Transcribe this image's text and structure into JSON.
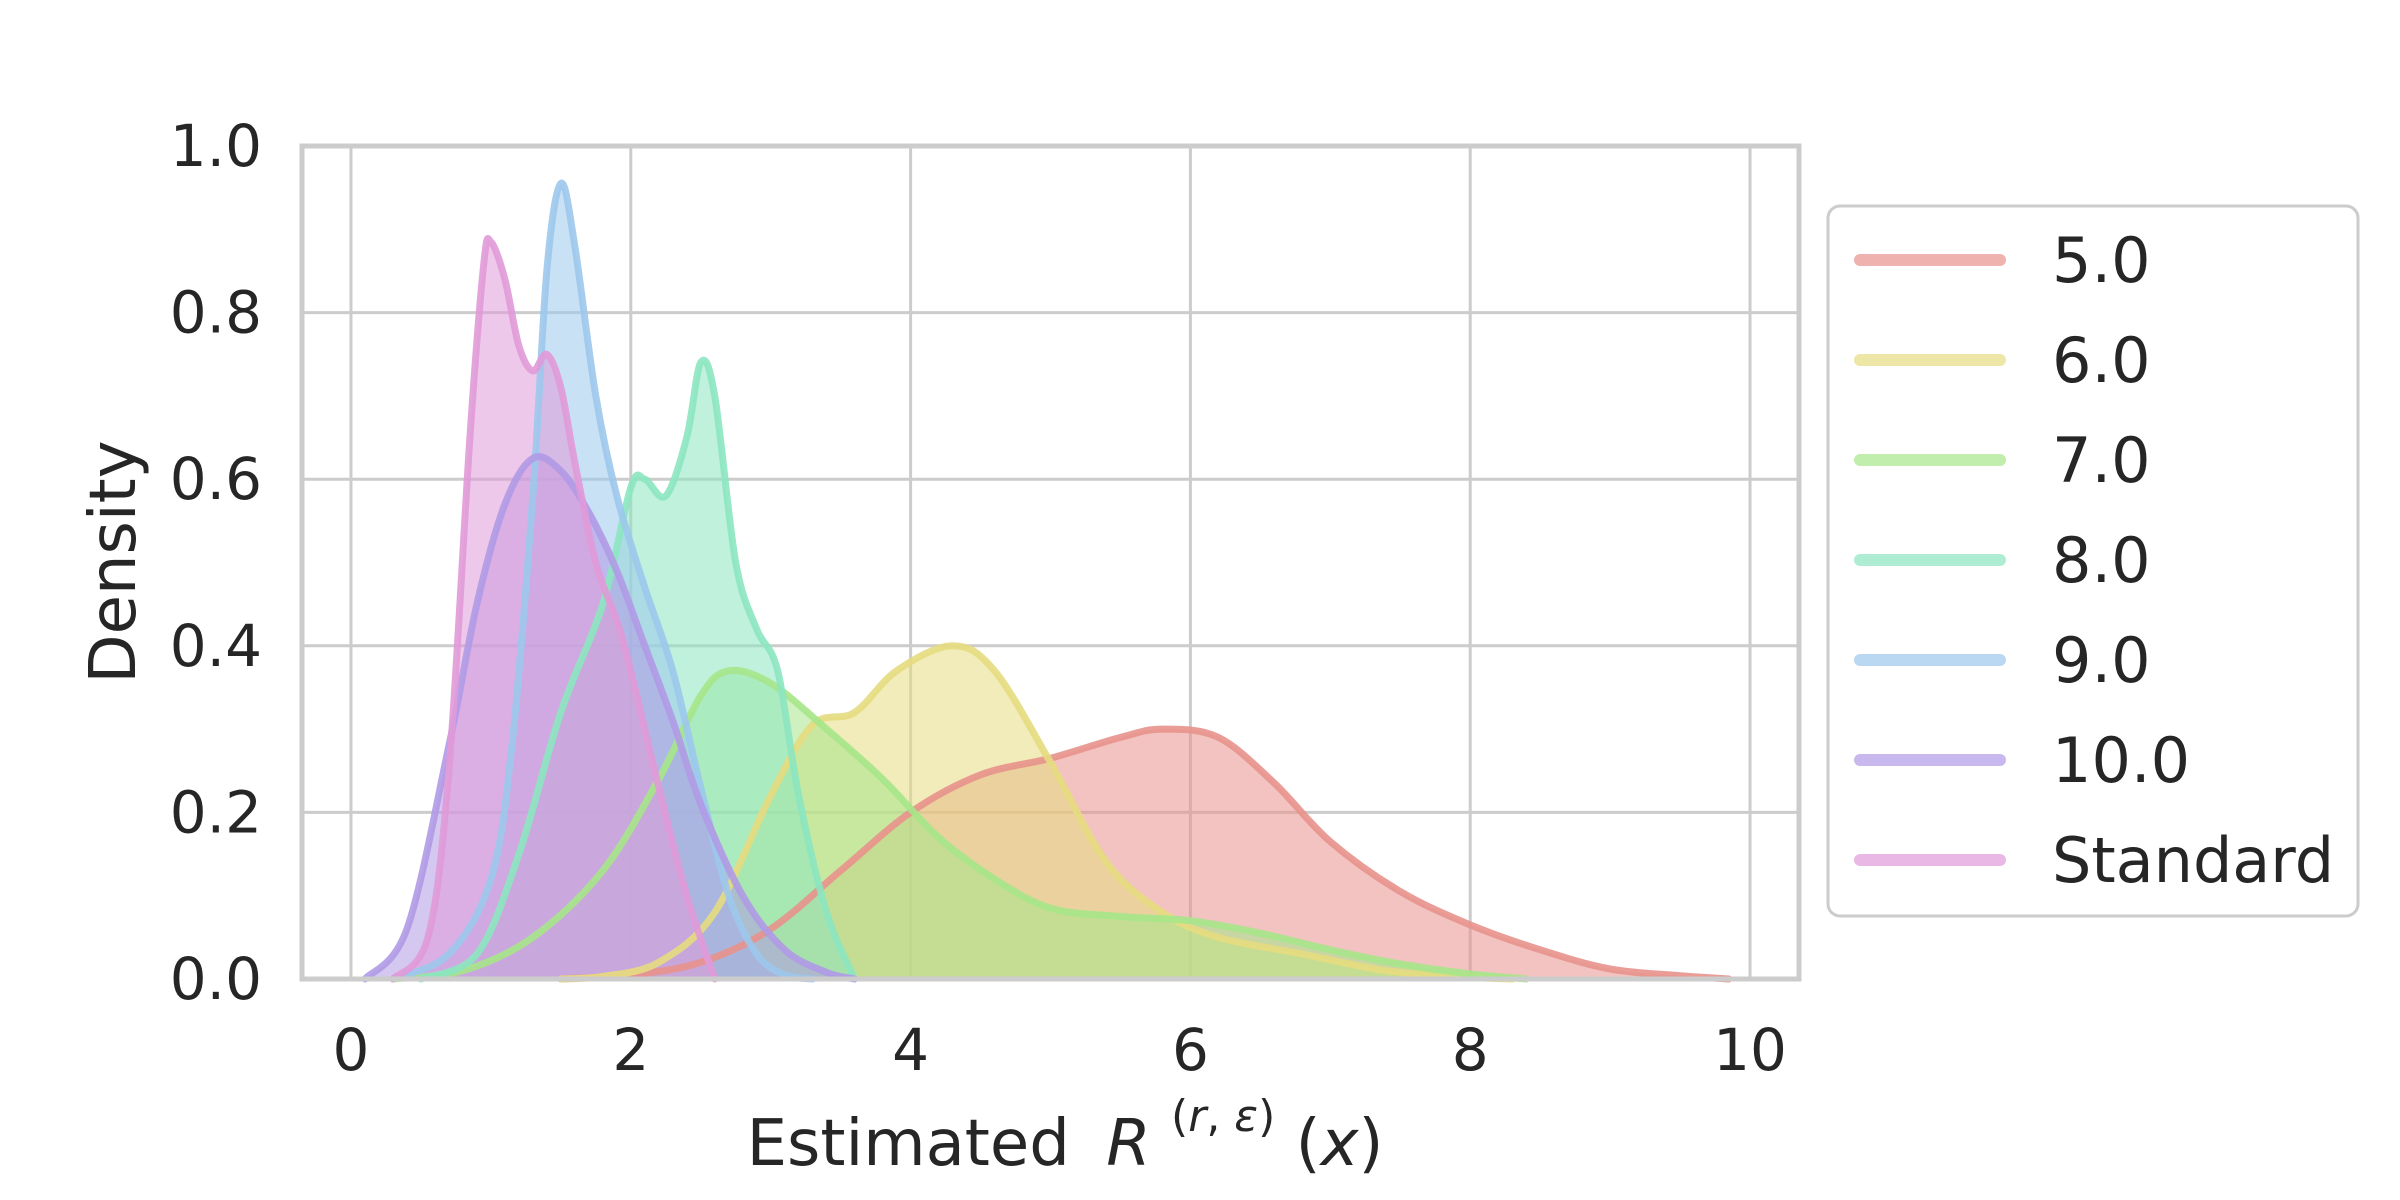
{
  "chart_data": {
    "type": "area",
    "title": "",
    "xlabel": "Estimated",
    "xlabel_math": {
      "symbol": "R",
      "sup_open": "(",
      "sup_r": "r",
      "sup_sep": ", ",
      "sup_eps": "ε",
      "sup_close": ")",
      "arg_open": "(",
      "arg_x": "x",
      "arg_close": ")"
    },
    "ylabel": "Density",
    "xlim": [
      -0.35,
      10.35
    ],
    "ylim": [
      0,
      1.0
    ],
    "xticks": [
      0,
      2,
      4,
      6,
      8,
      10
    ],
    "xtick_labels": [
      "0",
      "2",
      "4",
      "6",
      "8",
      "10"
    ],
    "yticks": [
      0.0,
      0.2,
      0.4,
      0.6,
      0.8,
      1.0
    ],
    "ytick_labels": [
      "0.0",
      "0.2",
      "0.4",
      "0.6",
      "0.8",
      "1.0"
    ],
    "grid": true,
    "legend_position": "outside-right",
    "series": [
      {
        "name": "5.0",
        "color": "#e8928c",
        "points": [
          [
            1.5,
            0
          ],
          [
            2.0,
            0.005
          ],
          [
            2.5,
            0.02
          ],
          [
            3.0,
            0.06
          ],
          [
            3.5,
            0.13
          ],
          [
            4.0,
            0.2
          ],
          [
            4.5,
            0.245
          ],
          [
            5.0,
            0.265
          ],
          [
            5.5,
            0.29
          ],
          [
            5.8,
            0.3
          ],
          [
            6.2,
            0.29
          ],
          [
            6.6,
            0.235
          ],
          [
            7.0,
            0.165
          ],
          [
            7.5,
            0.105
          ],
          [
            8.0,
            0.065
          ],
          [
            8.5,
            0.035
          ],
          [
            9.0,
            0.012
          ],
          [
            9.5,
            0.004
          ],
          [
            9.85,
            0
          ]
        ]
      },
      {
        "name": "6.0",
        "color": "#e6dc80",
        "points": [
          [
            1.5,
            0
          ],
          [
            1.8,
            0.003
          ],
          [
            2.2,
            0.02
          ],
          [
            2.6,
            0.08
          ],
          [
            3.0,
            0.22
          ],
          [
            3.3,
            0.305
          ],
          [
            3.6,
            0.32
          ],
          [
            3.9,
            0.37
          ],
          [
            4.3,
            0.4
          ],
          [
            4.6,
            0.37
          ],
          [
            5.0,
            0.26
          ],
          [
            5.4,
            0.14
          ],
          [
            5.8,
            0.08
          ],
          [
            6.2,
            0.05
          ],
          [
            6.8,
            0.03
          ],
          [
            7.4,
            0.01
          ],
          [
            8.0,
            0.002
          ],
          [
            8.3,
            0
          ]
        ]
      },
      {
        "name": "7.0",
        "color": "#a6e68a",
        "points": [
          [
            0.3,
            0
          ],
          [
            0.8,
            0.01
          ],
          [
            1.3,
            0.05
          ],
          [
            1.8,
            0.13
          ],
          [
            2.2,
            0.24
          ],
          [
            2.5,
            0.34
          ],
          [
            2.7,
            0.37
          ],
          [
            3.0,
            0.355
          ],
          [
            3.4,
            0.3
          ],
          [
            3.8,
            0.24
          ],
          [
            4.2,
            0.17
          ],
          [
            4.6,
            0.12
          ],
          [
            5.0,
            0.085
          ],
          [
            5.5,
            0.075
          ],
          [
            6.0,
            0.07
          ],
          [
            6.5,
            0.055
          ],
          [
            7.0,
            0.035
          ],
          [
            7.5,
            0.018
          ],
          [
            8.0,
            0.006
          ],
          [
            8.4,
            0
          ]
        ]
      },
      {
        "name": "8.0",
        "color": "#8ce6c0",
        "points": [
          [
            0.5,
            0
          ],
          [
            0.9,
            0.03
          ],
          [
            1.2,
            0.15
          ],
          [
            1.5,
            0.32
          ],
          [
            1.8,
            0.45
          ],
          [
            2.0,
            0.59
          ],
          [
            2.1,
            0.6
          ],
          [
            2.25,
            0.58
          ],
          [
            2.4,
            0.65
          ],
          [
            2.5,
            0.74
          ],
          [
            2.6,
            0.7
          ],
          [
            2.75,
            0.5
          ],
          [
            2.9,
            0.42
          ],
          [
            3.05,
            0.37
          ],
          [
            3.2,
            0.22
          ],
          [
            3.4,
            0.08
          ],
          [
            3.6,
            0
          ]
        ]
      },
      {
        "name": "9.0",
        "color": "#9cc8ec",
        "points": [
          [
            0.3,
            0
          ],
          [
            0.7,
            0.03
          ],
          [
            1.0,
            0.12
          ],
          [
            1.15,
            0.28
          ],
          [
            1.3,
            0.58
          ],
          [
            1.4,
            0.85
          ],
          [
            1.5,
            0.955
          ],
          [
            1.6,
            0.88
          ],
          [
            1.75,
            0.7
          ],
          [
            1.9,
            0.58
          ],
          [
            2.1,
            0.47
          ],
          [
            2.3,
            0.37
          ],
          [
            2.5,
            0.23
          ],
          [
            2.7,
            0.1
          ],
          [
            2.9,
            0.03
          ],
          [
            3.1,
            0.005
          ],
          [
            3.3,
            0
          ]
        ]
      },
      {
        "name": "10.0",
        "color": "#b09ae6",
        "points": [
          [
            0.1,
            0
          ],
          [
            0.4,
            0.06
          ],
          [
            0.7,
            0.28
          ],
          [
            0.9,
            0.45
          ],
          [
            1.1,
            0.57
          ],
          [
            1.3,
            0.625
          ],
          [
            1.5,
            0.61
          ],
          [
            1.7,
            0.56
          ],
          [
            1.9,
            0.49
          ],
          [
            2.1,
            0.4
          ],
          [
            2.3,
            0.31
          ],
          [
            2.5,
            0.21
          ],
          [
            2.8,
            0.1
          ],
          [
            3.1,
            0.035
          ],
          [
            3.4,
            0.008
          ],
          [
            3.6,
            0
          ]
        ]
      },
      {
        "name": "Standard",
        "color": "#e09ad8",
        "points": [
          [
            0.3,
            0
          ],
          [
            0.55,
            0.05
          ],
          [
            0.7,
            0.25
          ],
          [
            0.85,
            0.65
          ],
          [
            0.95,
            0.86
          ],
          [
            1.0,
            0.885
          ],
          [
            1.1,
            0.84
          ],
          [
            1.2,
            0.76
          ],
          [
            1.3,
            0.73
          ],
          [
            1.4,
            0.75
          ],
          [
            1.5,
            0.71
          ],
          [
            1.6,
            0.62
          ],
          [
            1.75,
            0.5
          ],
          [
            1.9,
            0.43
          ],
          [
            2.0,
            0.37
          ],
          [
            2.2,
            0.23
          ],
          [
            2.4,
            0.1
          ],
          [
            2.6,
            0
          ]
        ]
      }
    ]
  }
}
